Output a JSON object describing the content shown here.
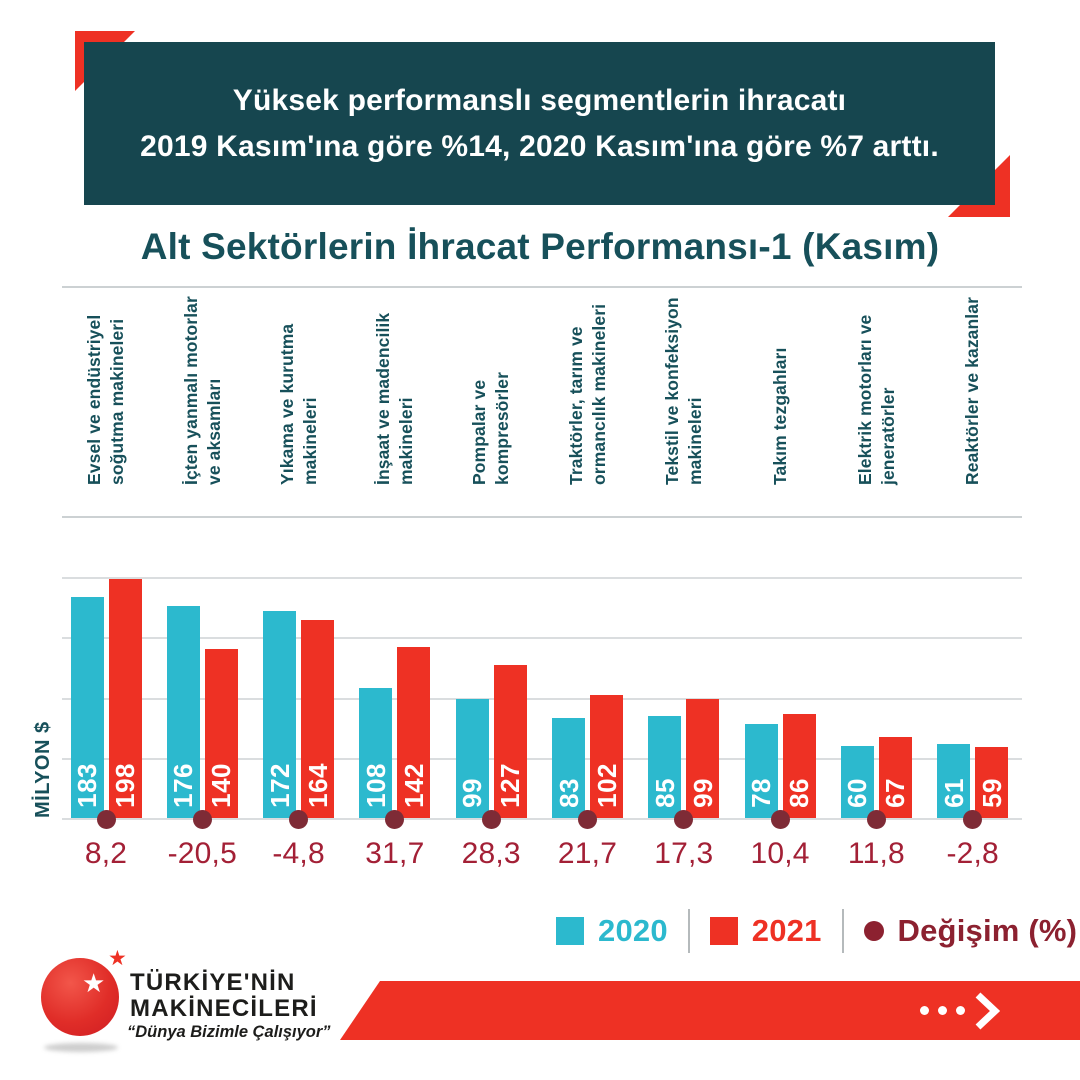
{
  "banner": {
    "line1": "Yüksek performanslı segmentlerin ihracatı",
    "line2": "2019 Kasım'ına göre %14, 2020 Kasım'ına göre %7 arttı.",
    "background_color": "#16464f",
    "accent_color": "#ee3124"
  },
  "title": "Alt Sektörlerin İhracat Performansı-1 (Kasım)",
  "axis": {
    "y_label": "MİLYON $"
  },
  "chart_data": {
    "type": "bar",
    "title": "Alt Sektörlerin İhracat Performansı-1 (Kasım)",
    "ylabel": "MİLYON $",
    "ylim": [
      0,
      210
    ],
    "gridline_values": [
      0,
      50,
      100,
      150,
      200
    ],
    "grid": true,
    "legend_position": "bottom-right",
    "categories": [
      "Evsel ve endüstriyel soğutma makineleri",
      "İçten yanmalı motorlar ve aksamları",
      "Yıkama ve kurutma makineleri",
      "İnşaat ve madencilik makineleri",
      "Pompalar ve kompresörler",
      "Traktörler, tarım ve ormancılık makineleri",
      "Tekstil ve konfeksiyon makineleri",
      "Takım tezgahları",
      "Elektrik motorları ve jeneratörler",
      "Reaktörler ve kazanlar"
    ],
    "series": [
      {
        "name": "2020",
        "color": "#2cb9ce",
        "values": [
          183,
          176,
          172,
          108,
          99,
          83,
          85,
          78,
          60,
          61
        ]
      },
      {
        "name": "2021",
        "color": "#ee3124",
        "values": [
          198,
          140,
          164,
          142,
          127,
          102,
          99,
          86,
          67,
          59
        ]
      }
    ],
    "change_percent": {
      "name": "Değişim (%)",
      "text_color": "#a32036",
      "marker_color": "#7e2b36",
      "values": [
        8.2,
        -20.5,
        -4.8,
        31.7,
        28.3,
        21.7,
        17.3,
        10.4,
        11.8,
        -2.8
      ],
      "values_display": [
        "8,2",
        "-20,5",
        "-4,8",
        "31,7",
        "28,3",
        "21,7",
        "17,3",
        "10,4",
        "11,8",
        "-2,8"
      ]
    }
  },
  "legend": {
    "items": [
      {
        "label": "2020",
        "color": "#2cb9ce",
        "marker": "square"
      },
      {
        "label": "2021",
        "color": "#ee3124",
        "marker": "square"
      },
      {
        "label": "Değişim (%)",
        "color": "#8c2130",
        "marker": "circle"
      }
    ]
  },
  "logo": {
    "line1": "TÜRKİYE'NİN",
    "line2": "MAKİNECİLERİ",
    "tagline": "“Dünya Bizimle Çalışıyor”"
  },
  "footer": {
    "arrow_icon": "ellipsis-chevron-right"
  }
}
